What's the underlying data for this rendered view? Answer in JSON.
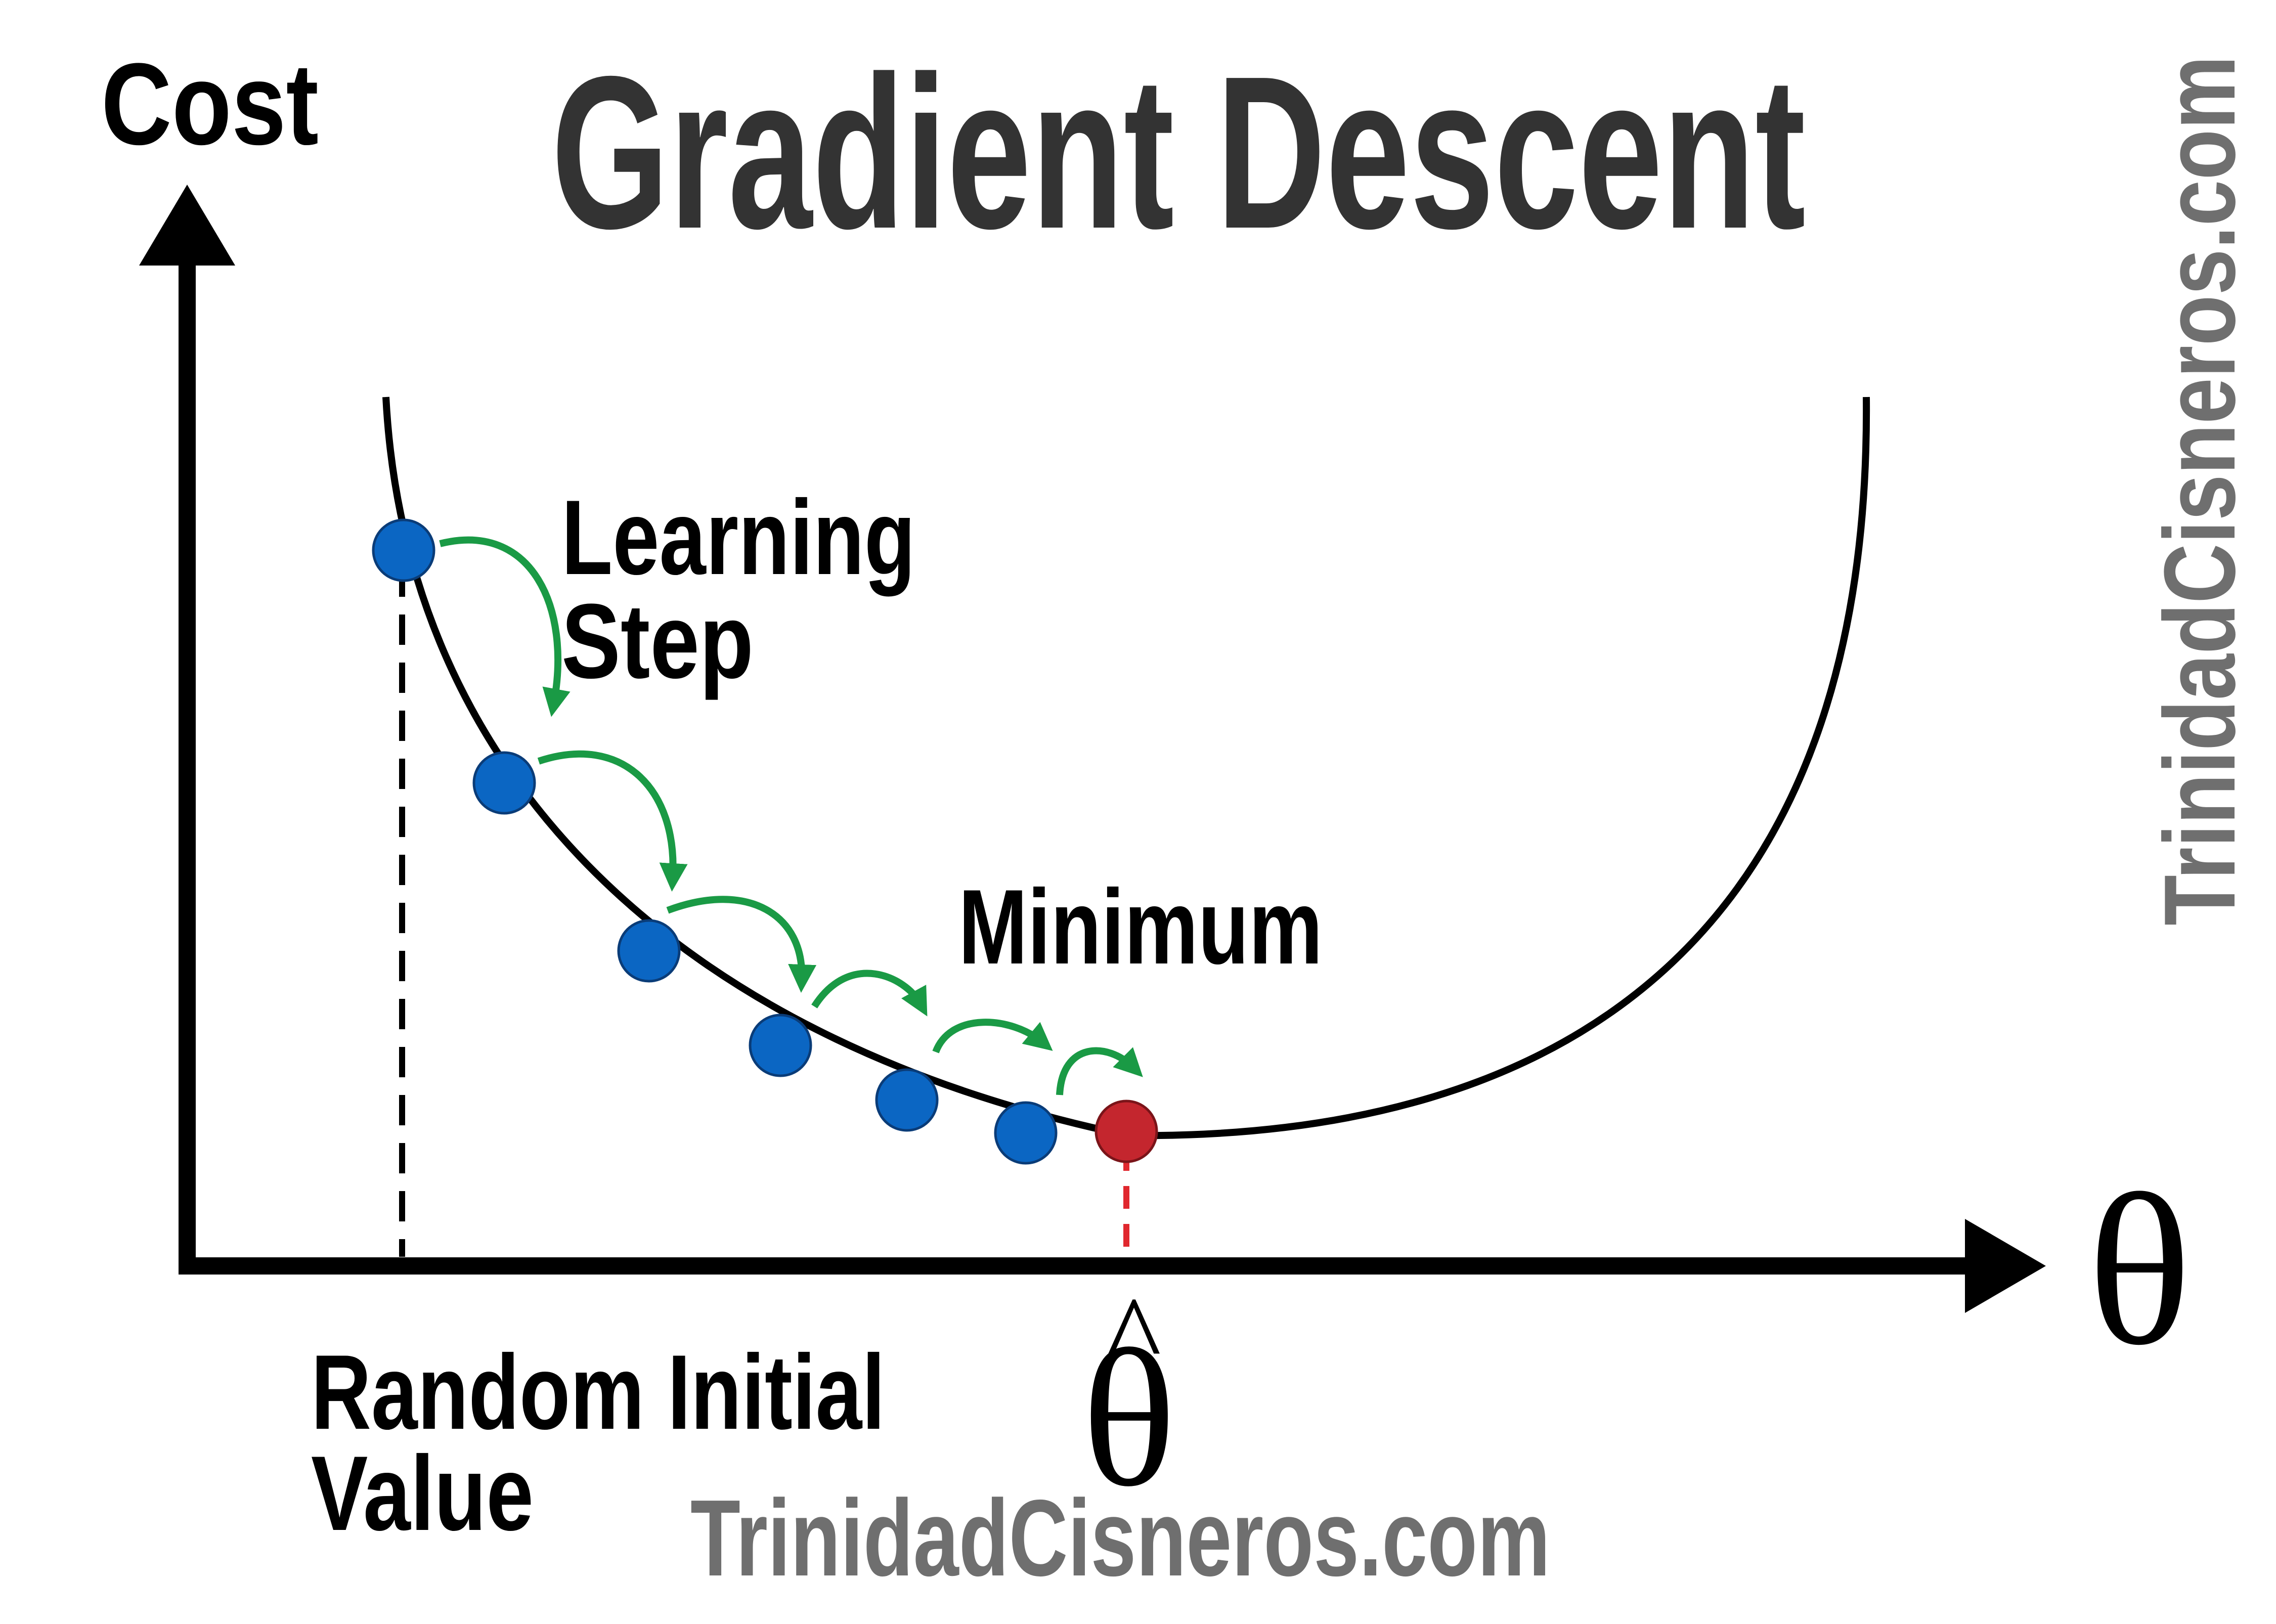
{
  "title": "Gradient Descent",
  "y_axis_label": "Cost",
  "x_axis_label": "θ",
  "theta_hat_symbol": "θ",
  "hat_mark": "^",
  "labels": {
    "learning_step_line1": "Learning",
    "learning_step_line2": "Step",
    "minimum": "Minimum",
    "random_initial_line1": "Random Initial",
    "random_initial_line2": "Value"
  },
  "watermark": "TrinidadCisneros.com",
  "colors": {
    "axis": "#000000",
    "curve": "#000000",
    "step_point": "#0b66c3",
    "minimum_point": "#c4262e",
    "arrow": "#1a9a45",
    "minimum_guide": "#e0272e",
    "watermark": "#6f6f6f",
    "title": "#333333"
  },
  "diagram": {
    "step_count": 6,
    "has_minimum_point": true
  }
}
